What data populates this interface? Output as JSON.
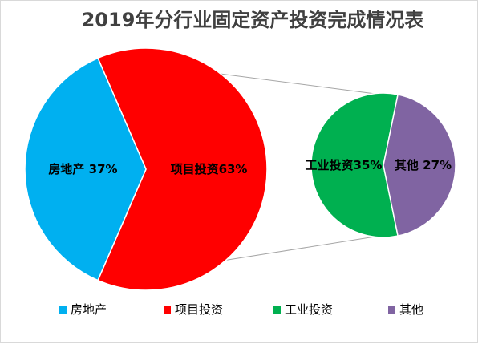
{
  "chart_data": {
    "type": "pie",
    "subtype": "pie-of-pie",
    "title": "2019年分行业固定资产投资完成情况表",
    "main_pie": {
      "slices": [
        {
          "name": "房地产",
          "value": 37,
          "label": "房地产 37%",
          "color": "#00b0f0"
        },
        {
          "name": "项目投资",
          "value": 63,
          "label": "项目投资63%",
          "color": "#ff0000"
        }
      ]
    },
    "secondary_pie": {
      "breakdown_of": "项目投资",
      "slices": [
        {
          "name": "工业投资",
          "value": 35,
          "label": "工业投资35%",
          "color": "#00b050"
        },
        {
          "name": "其他",
          "value": 27,
          "label": "其他 27%",
          "color": "#8064a2"
        }
      ]
    },
    "legend": {
      "position": "bottom",
      "items": [
        {
          "label": "房地产",
          "color": "#00b0f0"
        },
        {
          "label": "项目投资",
          "color": "#ff0000"
        },
        {
          "label": "工业投资",
          "color": "#00b050"
        },
        {
          "label": "其他",
          "color": "#8064a2"
        }
      ]
    }
  }
}
